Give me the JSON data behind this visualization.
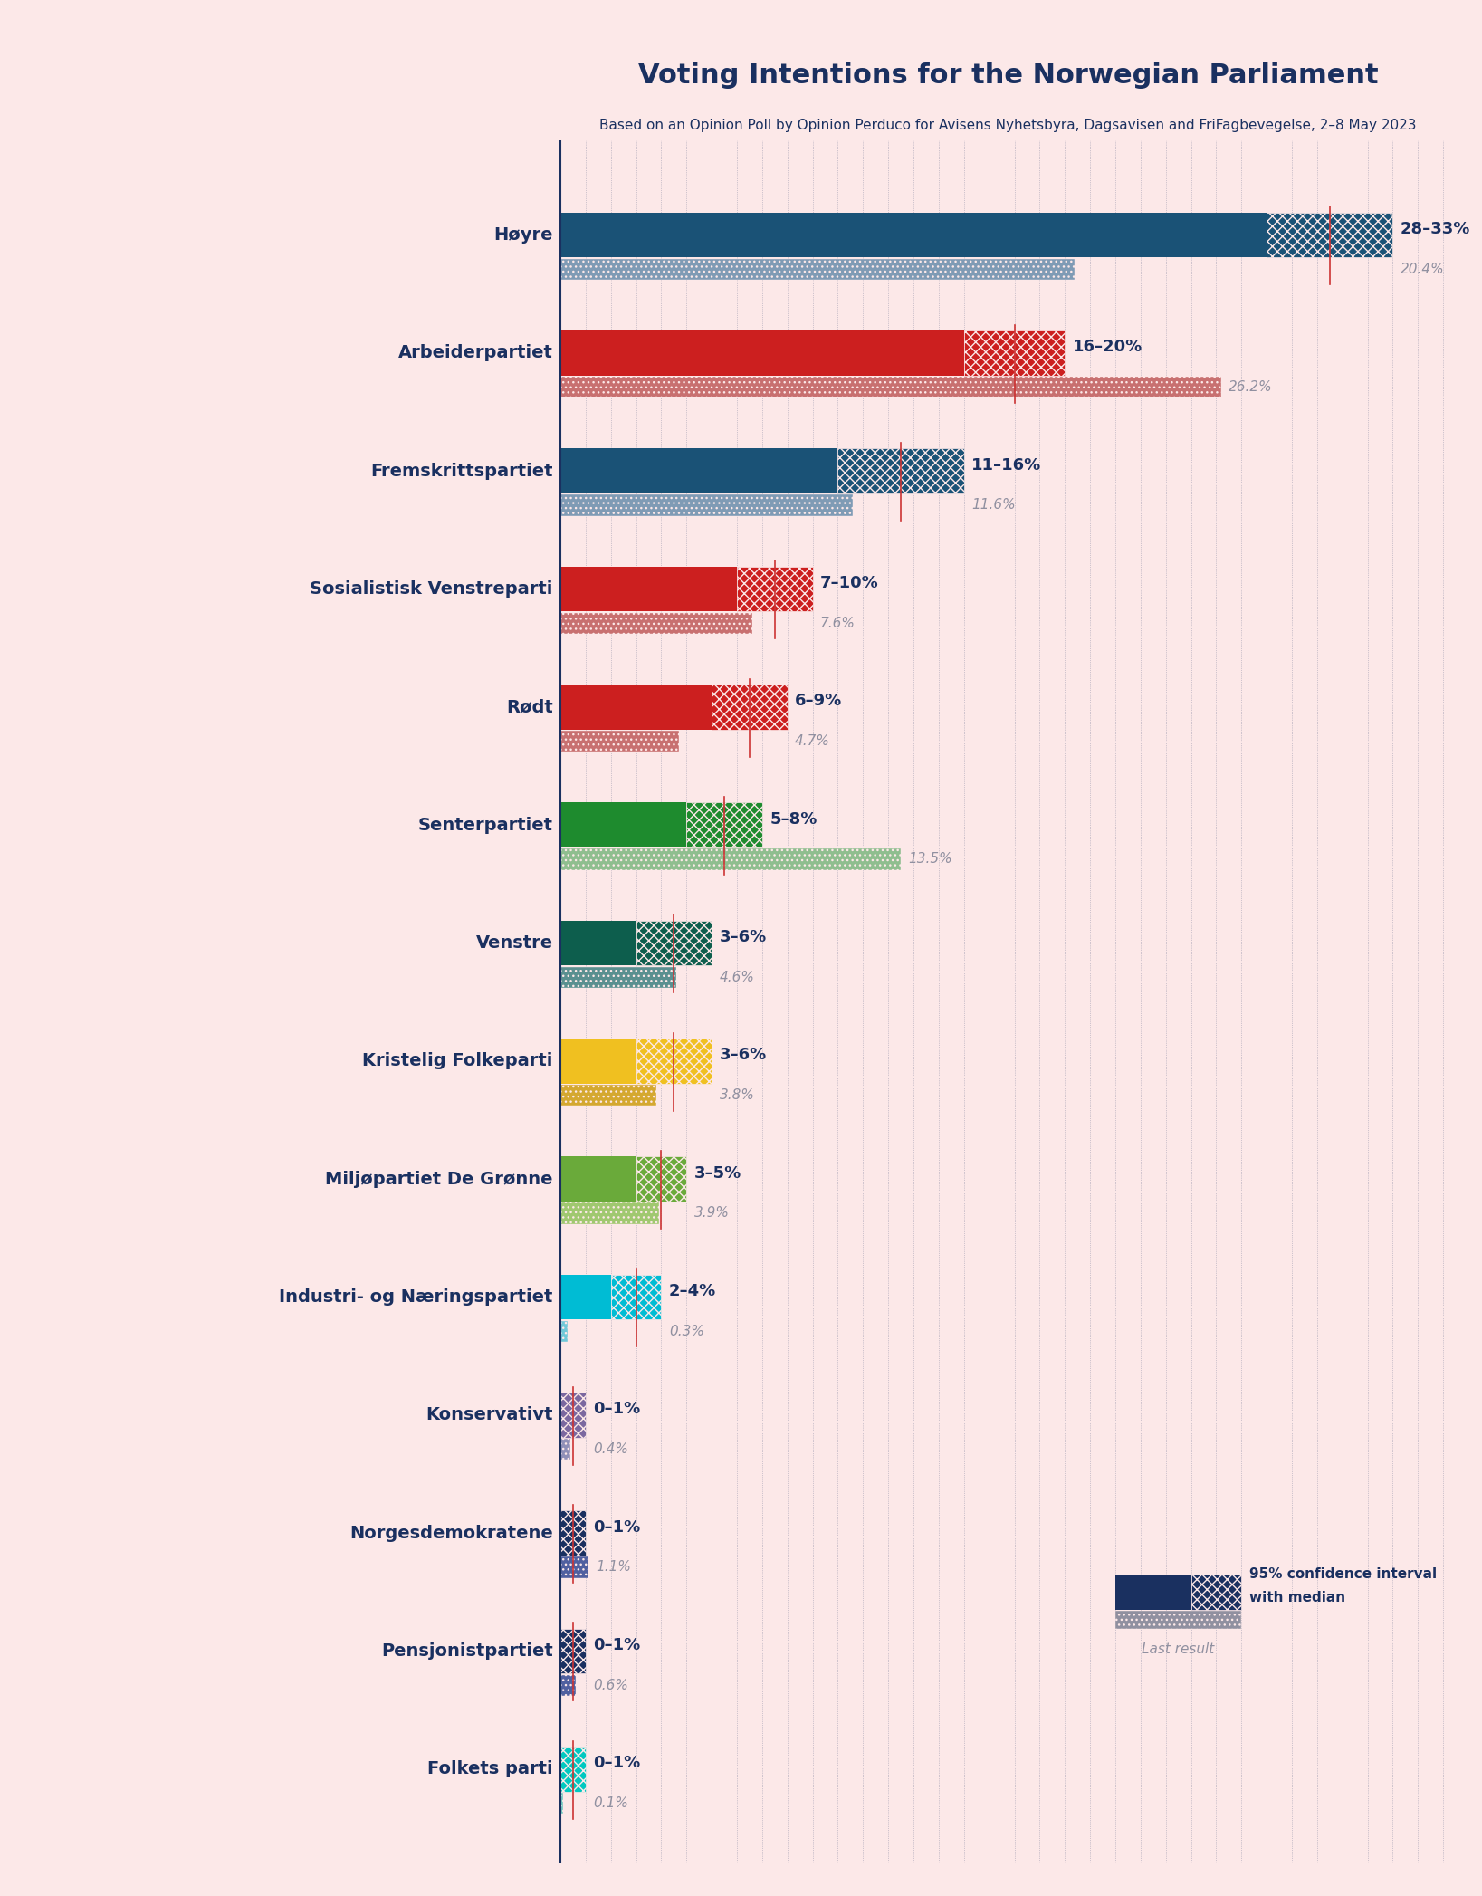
{
  "title": "Voting Intentions for the Norwegian Parliament",
  "subtitle": "Based on an Opinion Poll by Opinion Perduco for Avisens Nyhetsbyra, Dagsavisen and FriFagbevegelse, 2–8 May 2023",
  "background_color": "#fce8e8",
  "parties": [
    {
      "name": "Høyre",
      "ci_low": 28,
      "ci_high": 33,
      "last": 20.4,
      "color": "#1a5276",
      "label": "28–33%",
      "last_label": "20.4%"
    },
    {
      "name": "Arbeiderpartiet",
      "ci_low": 16,
      "ci_high": 20,
      "last": 26.2,
      "color": "#cc1f1f",
      "label": "16–20%",
      "last_label": "26.2%"
    },
    {
      "name": "Fremskrittspartiet",
      "ci_low": 11,
      "ci_high": 16,
      "last": 11.6,
      "color": "#1a5276",
      "label": "11–16%",
      "last_label": "11.6%"
    },
    {
      "name": "Sosialistisk Venstreparti",
      "ci_low": 7,
      "ci_high": 10,
      "last": 7.6,
      "color": "#cc1f1f",
      "label": "7–10%",
      "last_label": "7.6%"
    },
    {
      "name": "Rødt",
      "ci_low": 6,
      "ci_high": 9,
      "last": 4.7,
      "color": "#cc1f1f",
      "label": "6–9%",
      "last_label": "4.7%"
    },
    {
      "name": "Senterpartiet",
      "ci_low": 5,
      "ci_high": 8,
      "last": 13.5,
      "color": "#1e8b2e",
      "label": "5–8%",
      "last_label": "13.5%"
    },
    {
      "name": "Venstre",
      "ci_low": 3,
      "ci_high": 6,
      "last": 4.6,
      "color": "#0d5e4d",
      "label": "3–6%",
      "last_label": "4.6%"
    },
    {
      "name": "Kristelig Folkeparti",
      "ci_low": 3,
      "ci_high": 6,
      "last": 3.8,
      "color": "#f0c020",
      "label": "3–6%",
      "last_label": "3.8%"
    },
    {
      "name": "Miljøpartiet De Grønne",
      "ci_low": 3,
      "ci_high": 5,
      "last": 3.9,
      "color": "#6aaa3a",
      "label": "3–5%",
      "last_label": "3.9%"
    },
    {
      "name": "Industri- og Næringspartiet",
      "ci_low": 2,
      "ci_high": 4,
      "last": 0.3,
      "color": "#00bcd4",
      "label": "2–4%",
      "last_label": "0.3%"
    },
    {
      "name": "Konservativt",
      "ci_low": 0,
      "ci_high": 1,
      "last": 0.4,
      "color": "#7b68a0",
      "label": "0–1%",
      "last_label": "0.4%"
    },
    {
      "name": "Norgesdemokratene",
      "ci_low": 0,
      "ci_high": 1,
      "last": 1.1,
      "color": "#1a3060",
      "label": "0–1%",
      "last_label": "1.1%"
    },
    {
      "name": "Pensjonistpartiet",
      "ci_low": 0,
      "ci_high": 1,
      "last": 0.6,
      "color": "#1a3060",
      "label": "0–1%",
      "last_label": "0.6%"
    },
    {
      "name": "Folkets parti",
      "ci_low": 0,
      "ci_high": 1,
      "last": 0.1,
      "color": "#00c8c0",
      "label": "0–1%",
      "last_label": "0.1%"
    }
  ],
  "last_colors": {
    "Høyre": "#7f9bb5",
    "Arbeiderpartiet": "#c87070",
    "Fremskrittspartiet": "#7f9bb5",
    "Sosialistisk Venstreparti": "#c87070",
    "Rødt": "#c87070",
    "Senterpartiet": "#8fbe8f",
    "Venstre": "#5a9090",
    "Kristelig Folkeparti": "#d4a830",
    "Miljøpartiet De Grønne": "#a0c870",
    "Industri- og Næringspartiet": "#70c8d8",
    "Konservativt": "#9090b8",
    "Norgesdemokratene": "#5060a0",
    "Pensjonistpartiet": "#5060a0",
    "Folkets parti": "#70c8c0"
  },
  "axis_line_color": "#1a3060",
  "median_line_color": "#cc3333",
  "title_color": "#1a3060",
  "label_color": "#1a3060",
  "last_label_color": "#9090a0",
  "bar_height": 0.38,
  "last_bar_height": 0.18,
  "xlim": [
    0,
    36
  ]
}
